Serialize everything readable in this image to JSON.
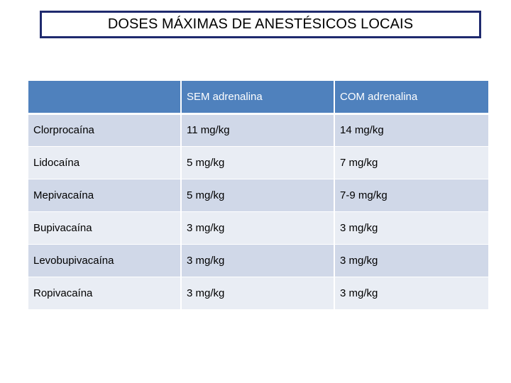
{
  "title": "DOSES MÁXIMAS DE ANESTÉSICOS LOCAIS",
  "table": {
    "headers": [
      "",
      "SEM adrenalina",
      "COM adrenalina"
    ],
    "rows": [
      [
        "Clorprocaína",
        "11 mg/kg",
        "14 mg/kg"
      ],
      [
        "Lidocaína",
        "5 mg/kg",
        "7 mg/kg"
      ],
      [
        "Mepivacaína",
        "5 mg/kg",
        "7-9 mg/kg"
      ],
      [
        "Bupivacaína",
        "3 mg/kg",
        "3 mg/kg"
      ],
      [
        "Levobupivacaína",
        "3 mg/kg",
        "3 mg/kg"
      ],
      [
        "Ropivacaína",
        "3 mg/kg",
        "3 mg/kg"
      ]
    ]
  },
  "colors": {
    "header_bg": "#4f81bd",
    "row_odd_bg": "#d0d8e8",
    "row_even_bg": "#e9edf4",
    "title_border": "#1f2a6e"
  }
}
